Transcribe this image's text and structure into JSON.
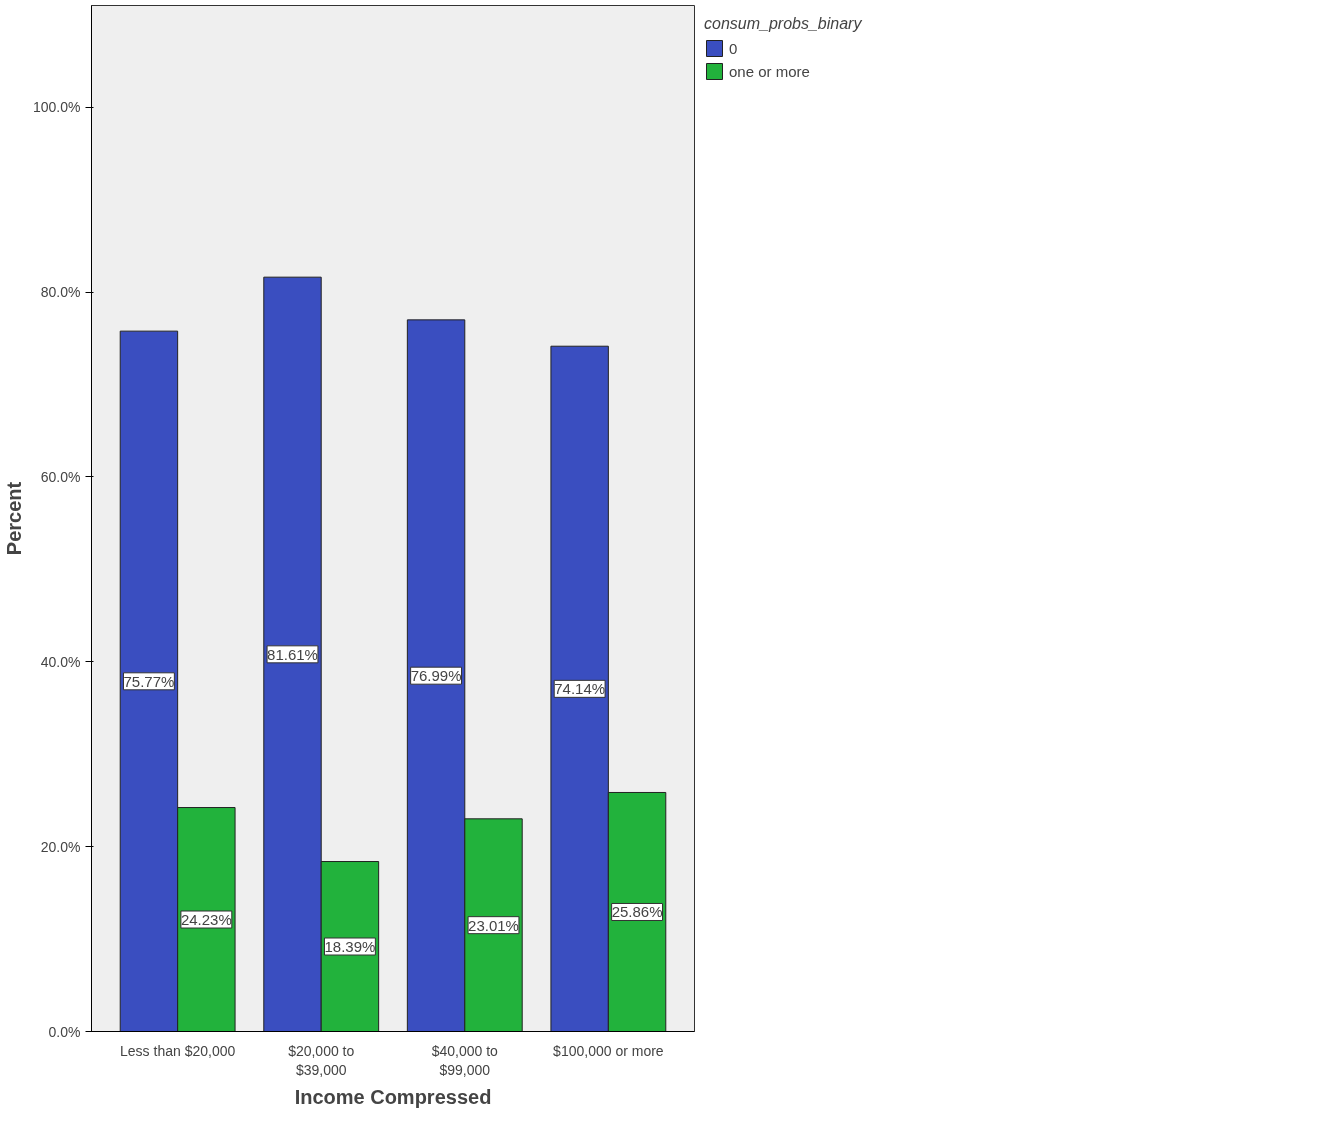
{
  "chart_data": {
    "type": "bar",
    "categories": [
      "Less than $20,000",
      "$20,000 to\n$39,000",
      "$40,000 to\n$99,000",
      "$100,000 or more"
    ],
    "series": [
      {
        "name": "0",
        "color": "#3a4ec0",
        "values": [
          75.77,
          81.61,
          76.99,
          74.14
        ],
        "value_labels": [
          "75.77%",
          "81.61%",
          "76.99%",
          "74.14%"
        ]
      },
      {
        "name": "one or more",
        "color": "#22b23c",
        "values": [
          24.23,
          18.39,
          23.01,
          25.86
        ],
        "value_labels": [
          "24.23%",
          "18.39%",
          "23.01%",
          "25.86%"
        ]
      }
    ],
    "xlabel": "Income Compressed",
    "ylabel": "Percent",
    "legend_title": "consum_probs_binary",
    "ylim": [
      0,
      111
    ],
    "yticks": [
      {
        "value": 0,
        "label": "0.0%"
      },
      {
        "value": 20,
        "label": "20.0%"
      },
      {
        "value": 40,
        "label": "40.0%"
      },
      {
        "value": 60,
        "label": "60.0%"
      },
      {
        "value": 80,
        "label": "80.0%"
      },
      {
        "value": 100,
        "label": "100.0%"
      }
    ],
    "grid": false,
    "legend": "top right"
  }
}
